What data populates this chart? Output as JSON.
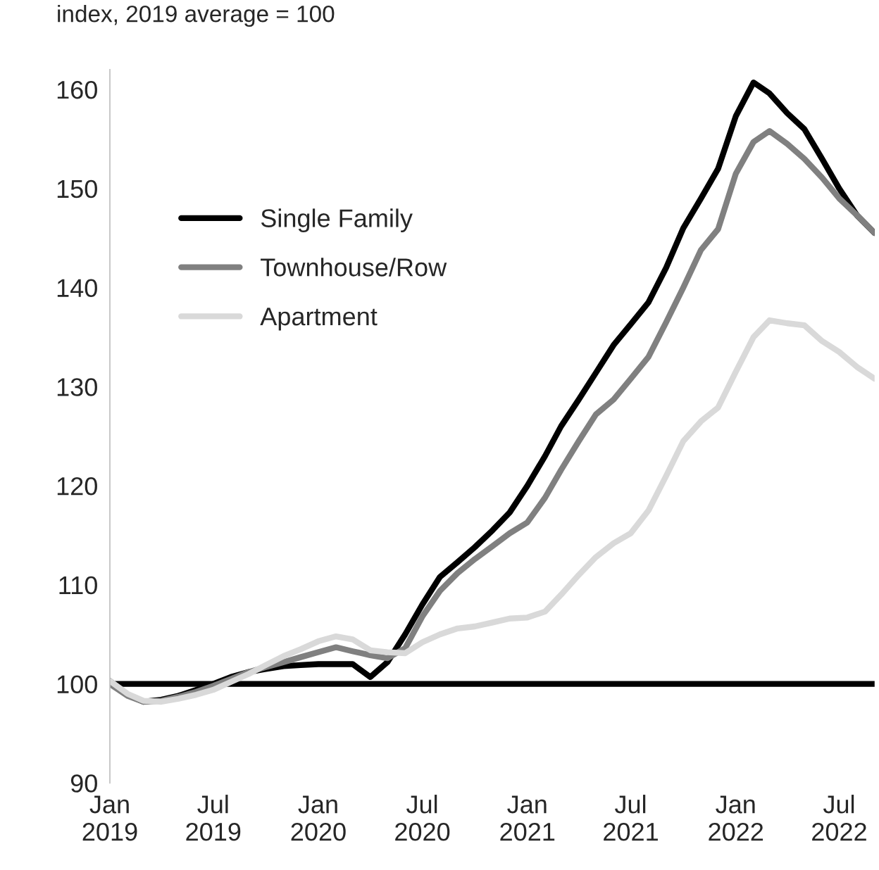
{
  "chart_data": {
    "type": "line",
    "ylabel": "index, 2019 average = 100",
    "x": [
      "2019-01",
      "2019-02",
      "2019-03",
      "2019-04",
      "2019-05",
      "2019-06",
      "2019-07",
      "2019-08",
      "2019-09",
      "2019-10",
      "2019-11",
      "2019-12",
      "2020-01",
      "2020-02",
      "2020-03",
      "2020-04",
      "2020-05",
      "2020-06",
      "2020-07",
      "2020-08",
      "2020-09",
      "2020-10",
      "2020-11",
      "2020-12",
      "2021-01",
      "2021-02",
      "2021-03",
      "2021-04",
      "2021-05",
      "2021-06",
      "2021-07",
      "2021-08",
      "2021-09",
      "2021-10",
      "2021-11",
      "2021-12",
      "2022-01",
      "2022-02",
      "2022-03",
      "2022-04",
      "2022-05",
      "2022-06",
      "2022-07",
      "2022-08",
      "2022-09"
    ],
    "series": [
      {
        "name": "Single Family",
        "color": "#000000",
        "values": [
          100.3,
          98.9,
          98.2,
          98.4,
          98.8,
          99.4,
          100.0,
          100.7,
          101.2,
          101.5,
          101.8,
          101.9,
          102.0,
          102.0,
          102.0,
          100.7,
          102.2,
          105.0,
          108.0,
          110.8,
          112.3,
          113.8,
          115.5,
          117.3,
          120.0,
          123.0,
          126.0,
          128.7,
          131.4,
          134.2,
          136.3,
          138.5,
          142.0,
          146.0,
          149.0,
          152.0,
          157.3,
          160.7,
          159.6,
          157.6,
          156.0,
          153.0,
          150.0,
          147.3,
          145.5
        ]
      },
      {
        "name": "Townhouse/Row",
        "color": "#808080",
        "values": [
          100.0,
          98.8,
          98.2,
          98.3,
          98.7,
          99.2,
          99.8,
          100.5,
          101.2,
          101.7,
          102.2,
          102.7,
          103.2,
          103.7,
          103.3,
          102.9,
          102.6,
          103.6,
          106.8,
          109.4,
          111.2,
          112.6,
          113.9,
          115.2,
          116.3,
          118.8,
          121.6,
          124.5,
          127.2,
          128.7,
          130.8,
          133.0,
          136.5,
          140.0,
          143.8,
          145.9,
          151.5,
          154.7,
          155.8,
          154.5,
          153.0,
          151.1,
          149.0,
          147.3,
          145.5
        ]
      },
      {
        "name": "Apartment",
        "color": "#d9d9d9",
        "values": [
          100.3,
          99.0,
          98.3,
          98.2,
          98.5,
          98.9,
          99.4,
          100.2,
          101.0,
          101.9,
          102.8,
          103.5,
          104.3,
          104.8,
          104.5,
          103.4,
          103.2,
          103.1,
          104.2,
          105.0,
          105.6,
          105.8,
          106.2,
          106.6,
          106.7,
          107.3,
          109.0,
          111.0,
          112.8,
          114.2,
          115.2,
          117.5,
          121.0,
          124.5,
          126.5,
          127.9,
          131.5,
          135.0,
          136.7,
          136.4,
          136.2,
          134.6,
          133.5,
          132.0,
          130.8
        ]
      }
    ],
    "xlim": [
      "2019-01",
      "2022-09"
    ],
    "xticks": [
      {
        "value": "2019-01",
        "label": "Jan\n2019"
      },
      {
        "value": "2019-07",
        "label": "Jul\n2019"
      },
      {
        "value": "2020-01",
        "label": "Jan\n2020"
      },
      {
        "value": "2020-07",
        "label": "Jul\n2020"
      },
      {
        "value": "2021-01",
        "label": "Jan\n2021"
      },
      {
        "value": "2021-07",
        "label": "Jul\n2021"
      },
      {
        "value": "2022-01",
        "label": "Jan\n2022"
      },
      {
        "value": "2022-07",
        "label": "Jul\n2022"
      }
    ],
    "ylim": [
      90,
      162
    ],
    "yticks": [
      90,
      100,
      110,
      120,
      130,
      140,
      150,
      160
    ],
    "ref_lines": [
      {
        "axis": "y",
        "value": 100,
        "color": "#000000"
      }
    ],
    "grid": false,
    "legend": "top left"
  }
}
